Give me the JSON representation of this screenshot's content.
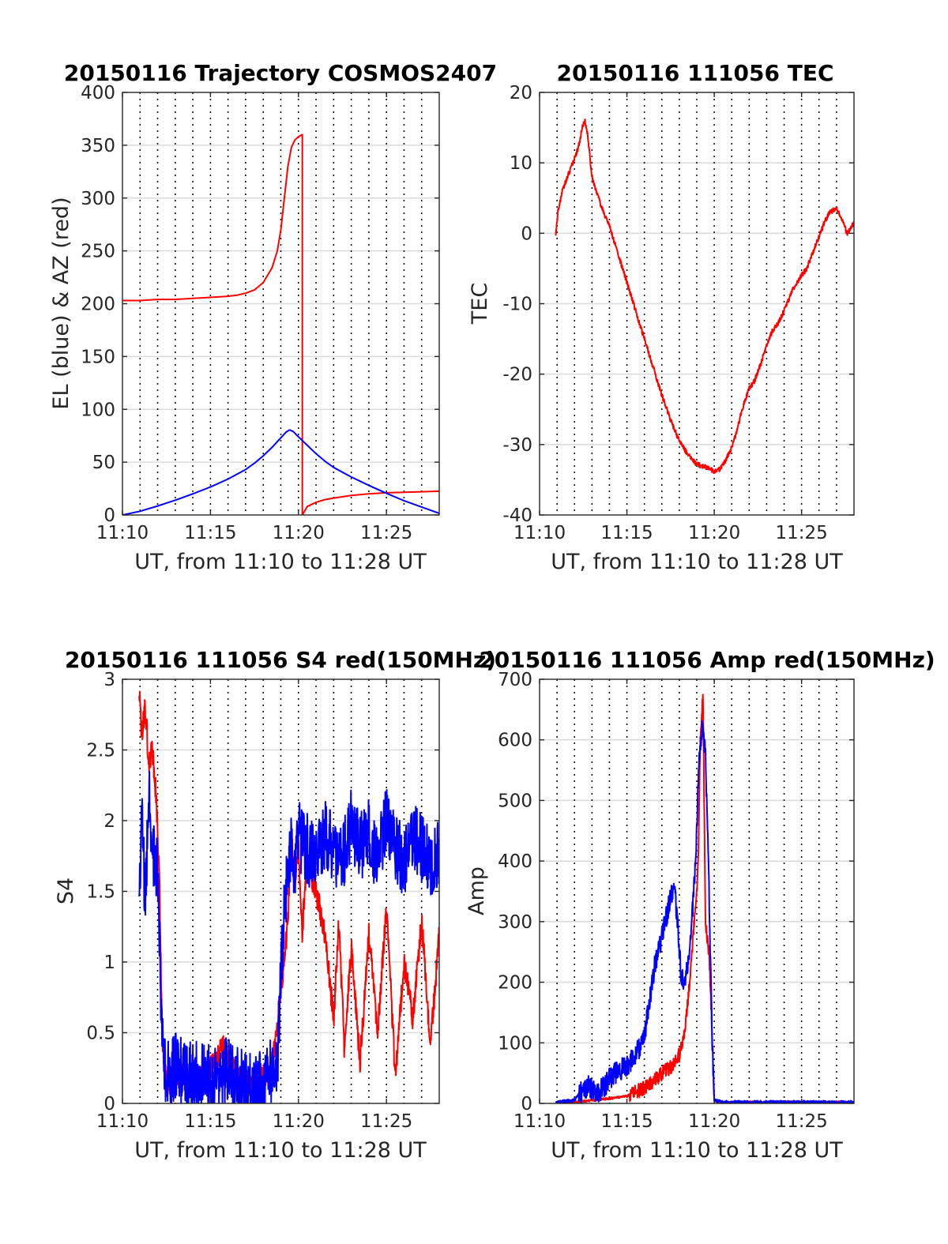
{
  "chart_data": [
    {
      "id": "trajectory",
      "type": "line",
      "title": "20150116 Trajectory COSMOS2407",
      "xlabel": "UT, from 11:10 to 11:28 UT",
      "ylabel": "EL (blue) & AZ (red)",
      "x_unit": "minutes after 11:00 UT",
      "xlim": [
        10,
        28
      ],
      "ylim": [
        0,
        400
      ],
      "x_ticks": [
        10,
        15,
        20,
        25
      ],
      "x_tick_labels": [
        "11:10",
        "11:15",
        "11:20",
        "11:25"
      ],
      "y_ticks": [
        0,
        50,
        100,
        150,
        200,
        250,
        300,
        350,
        400
      ],
      "y_tick_labels": [
        "0",
        "50",
        "100",
        "150",
        "200",
        "250",
        "300",
        "350",
        "400"
      ],
      "minor_x_gridlines": [
        11,
        12,
        13,
        14,
        16,
        17,
        18,
        19,
        21,
        22,
        23,
        24,
        26,
        27
      ],
      "grid": true,
      "series": [
        {
          "color": "#ff0000",
          "noise": 0,
          "x": [
            10.0,
            11.0,
            12.0,
            13.0,
            14.0,
            15.0,
            16.0,
            16.5,
            17.0,
            17.5,
            18.0,
            18.5,
            18.8,
            19.0,
            19.2,
            19.4,
            19.6,
            19.8,
            20.0,
            20.2,
            20.22,
            20.22,
            20.5,
            21.0,
            21.5,
            22.0,
            23.0,
            24.0,
            25.0,
            26.0,
            27.0,
            28.0
          ],
          "y": [
            203,
            203,
            204,
            204,
            205,
            206,
            207,
            208,
            210,
            213,
            220,
            234,
            250,
            270,
            300,
            330,
            348,
            355,
            358,
            360,
            360,
            0,
            8,
            12,
            14.5,
            16,
            18.5,
            20,
            21,
            21.5,
            22,
            22.5
          ]
        },
        {
          "color": "#0000ff",
          "noise": 0,
          "x": [
            10.0,
            11.0,
            12.0,
            13.0,
            14.0,
            15.0,
            16.0,
            17.0,
            17.5,
            18.0,
            18.5,
            19.0,
            19.3,
            19.5,
            19.7,
            20.0,
            20.5,
            21.0,
            21.5,
            22.0,
            23.0,
            24.0,
            25.0,
            26.0,
            27.0,
            28.0
          ],
          "y": [
            0,
            3.5,
            8.5,
            14,
            20,
            26.5,
            34,
            43,
            49,
            56,
            64,
            73,
            78.5,
            80.5,
            79,
            74,
            66,
            58,
            51,
            45,
            36,
            28,
            20.5,
            13.5,
            7.5,
            1.5
          ]
        }
      ]
    },
    {
      "id": "tec",
      "type": "line",
      "title": "20150116 111056 TEC",
      "xlabel": "UT, from 11:10 to 11:28 UT",
      "ylabel": "TEC",
      "x_unit": "minutes after 11:00 UT",
      "xlim": [
        10,
        28
      ],
      "ylim": [
        -40,
        20
      ],
      "x_ticks": [
        10,
        15,
        20,
        25
      ],
      "x_tick_labels": [
        "11:10",
        "11:15",
        "11:20",
        "11:25"
      ],
      "y_ticks": [
        -40,
        -30,
        -20,
        -10,
        0,
        10,
        20
      ],
      "y_tick_labels": [
        "-40",
        "-30",
        "-20",
        "-10",
        "0",
        "10",
        "20"
      ],
      "minor_x_gridlines": [
        11,
        12,
        13,
        14,
        16,
        17,
        18,
        19,
        21,
        22,
        23,
        24,
        26,
        27
      ],
      "grid": true,
      "series": [
        {
          "color": "#ff0000",
          "noise": 0.35,
          "x": [
            10.93,
            11.05,
            11.3,
            11.6,
            11.9,
            12.2,
            12.45,
            12.6,
            12.75,
            13.0,
            13.5,
            14.0,
            14.5,
            15.0,
            15.5,
            16.0,
            16.5,
            17.0,
            17.5,
            18.0,
            18.5,
            19.0,
            19.5,
            19.8,
            20.0,
            20.3,
            20.6,
            21.0,
            21.3,
            21.6,
            22.0,
            22.3,
            22.6,
            23.0,
            23.3,
            23.6,
            24.0,
            24.5,
            25.0,
            25.3,
            25.6,
            26.0,
            26.3,
            26.6,
            27.0,
            27.3,
            27.6,
            28.0
          ],
          "y": [
            0,
            3,
            6,
            8,
            10,
            12,
            15,
            16,
            14,
            8,
            4,
            1,
            -3,
            -7,
            -11,
            -15,
            -19,
            -23,
            -26.5,
            -29.5,
            -31.5,
            -32.8,
            -33.2,
            -33.6,
            -33.8,
            -33.5,
            -32.5,
            -30.5,
            -28,
            -25,
            -22,
            -21,
            -19,
            -16,
            -14,
            -13,
            -11,
            -8,
            -6,
            -5,
            -3,
            -0.5,
            1.5,
            3,
            3.5,
            2,
            0,
            1.5
          ]
        }
      ]
    },
    {
      "id": "s4",
      "type": "line",
      "title": "20150116 111056 S4 red(150MHz)",
      "xlabel": "UT, from 11:10 to 11:28 UT",
      "ylabel": "S4",
      "x_unit": "minutes after 11:00 UT",
      "xlim": [
        10,
        28
      ],
      "ylim": [
        0,
        3
      ],
      "x_ticks": [
        10,
        15,
        20,
        25
      ],
      "x_tick_labels": [
        "11:10",
        "11:15",
        "11:20",
        "11:25"
      ],
      "y_ticks": [
        0,
        0.5,
        1,
        1.5,
        2,
        2.5,
        3
      ],
      "y_tick_labels": [
        "0",
        "0.5",
        "1",
        "1.5",
        "2",
        "2.5",
        "3"
      ],
      "minor_x_gridlines": [
        11,
        12,
        13,
        14,
        16,
        17,
        18,
        19,
        21,
        22,
        23,
        24,
        26,
        27
      ],
      "grid": true,
      "series": [
        {
          "color": "#ff0000",
          "noise": 0.09,
          "x": [
            10.95,
            11.1,
            11.3,
            11.5,
            11.7,
            11.9,
            12.1,
            12.25,
            12.4,
            12.7,
            13.0,
            13.5,
            14.0,
            14.5,
            15.0,
            15.5,
            15.8,
            16.0,
            16.5,
            17.0,
            17.5,
            18.0,
            18.5,
            18.8,
            19.0,
            19.2,
            19.4,
            19.6,
            19.8,
            20.0,
            20.2,
            20.5,
            21.0,
            21.5,
            22.0,
            22.3,
            22.6,
            23.0,
            23.5,
            24.0,
            24.5,
            25.0,
            25.5,
            26.0,
            26.5,
            27.0,
            27.5,
            28.0
          ],
          "y": [
            2.9,
            2.6,
            2.8,
            2.4,
            2.5,
            2.2,
            1.6,
            0.5,
            0.2,
            0.15,
            0.22,
            0.2,
            0.18,
            0.2,
            0.25,
            0.35,
            0.42,
            0.3,
            0.2,
            0.15,
            0.12,
            0.18,
            0.3,
            0.55,
            0.8,
            1.0,
            1.3,
            1.9,
            1.5,
            1.8,
            1.2,
            1.7,
            1.5,
            1.2,
            0.6,
            1.3,
            0.4,
            1.1,
            0.3,
            1.2,
            0.5,
            1.4,
            0.2,
            1.0,
            0.6,
            1.3,
            0.4,
            1.2
          ]
        },
        {
          "color": "#0000ff",
          "noise": 0.25,
          "x": [
            10.95,
            11.1,
            11.3,
            11.5,
            11.7,
            11.9,
            12.05,
            12.2,
            12.4,
            12.7,
            13.0,
            13.5,
            14.0,
            14.5,
            15.0,
            15.5,
            16.0,
            16.5,
            17.0,
            17.5,
            18.0,
            18.5,
            18.8,
            19.0,
            19.2,
            19.4,
            19.6,
            19.8,
            20.0,
            20.5,
            21.0,
            21.5,
            22.0,
            22.5,
            23.0,
            23.5,
            24.0,
            24.5,
            25.0,
            25.5,
            26.0,
            26.5,
            27.0,
            27.5,
            28.0
          ],
          "y": [
            1.5,
            2.0,
            1.4,
            2.2,
            1.8,
            1.7,
            1.5,
            0.6,
            0.22,
            0.18,
            0.25,
            0.22,
            0.18,
            0.2,
            0.16,
            0.2,
            0.22,
            0.15,
            0.12,
            0.1,
            0.14,
            0.25,
            0.3,
            0.9,
            1.4,
            1.6,
            1.8,
            1.7,
            1.9,
            1.8,
            1.7,
            1.9,
            1.8,
            1.7,
            2.0,
            1.8,
            1.9,
            1.7,
            2.0,
            1.8,
            1.7,
            1.9,
            1.8,
            1.7,
            1.8
          ]
        }
      ]
    },
    {
      "id": "amp",
      "type": "line",
      "title": "20150116 111056 Amp red(150MHz)",
      "xlabel": "UT, from 11:10 to 11:28 UT",
      "ylabel": "Amp",
      "x_unit": "minutes after 11:00 UT",
      "xlim": [
        10,
        28
      ],
      "ylim": [
        0,
        700
      ],
      "x_ticks": [
        10,
        15,
        20,
        25
      ],
      "x_tick_labels": [
        "11:10",
        "11:15",
        "11:20",
        "11:25"
      ],
      "y_ticks": [
        0,
        100,
        200,
        300,
        400,
        500,
        600,
        700
      ],
      "y_tick_labels": [
        "0",
        "100",
        "200",
        "300",
        "400",
        "500",
        "600",
        "700"
      ],
      "minor_x_gridlines": [
        11,
        12,
        13,
        14,
        16,
        17,
        18,
        19,
        21,
        22,
        23,
        24,
        26,
        27
      ],
      "grid": true,
      "series": [
        {
          "color": "#ff0000",
          "noise": 12,
          "x": [
            10.95,
            12.0,
            13.0,
            14.0,
            15.0,
            16.0,
            16.5,
            17.0,
            17.5,
            18.0,
            18.3,
            18.6,
            18.8,
            19.0,
            19.1,
            19.2,
            19.35,
            19.5,
            19.7,
            19.9,
            20.0,
            20.3,
            21.0,
            24.0,
            28.0
          ],
          "y": [
            2,
            2,
            5,
            8,
            12,
            25,
            35,
            50,
            60,
            80,
            120,
            200,
            280,
            350,
            420,
            600,
            680,
            300,
            250,
            100,
            5,
            2,
            2,
            2,
            2
          ]
        },
        {
          "color": "#0000ff",
          "noise": 18,
          "x": [
            10.95,
            12.0,
            12.4,
            12.8,
            13.2,
            13.6,
            14.0,
            14.5,
            15.0,
            15.5,
            16.0,
            16.3,
            16.6,
            16.9,
            17.2,
            17.5,
            17.7,
            17.9,
            18.1,
            18.3,
            18.5,
            18.7,
            18.9,
            19.0,
            19.1,
            19.3,
            19.5,
            19.7,
            19.9,
            20.0,
            20.5,
            24.0,
            28.0
          ],
          "y": [
            2,
            5,
            20,
            30,
            15,
            25,
            40,
            55,
            60,
            80,
            110,
            170,
            230,
            260,
            300,
            340,
            360,
            300,
            210,
            200,
            230,
            300,
            380,
            460,
            550,
            620,
            580,
            350,
            80,
            5,
            2,
            2,
            2
          ]
        }
      ]
    }
  ]
}
